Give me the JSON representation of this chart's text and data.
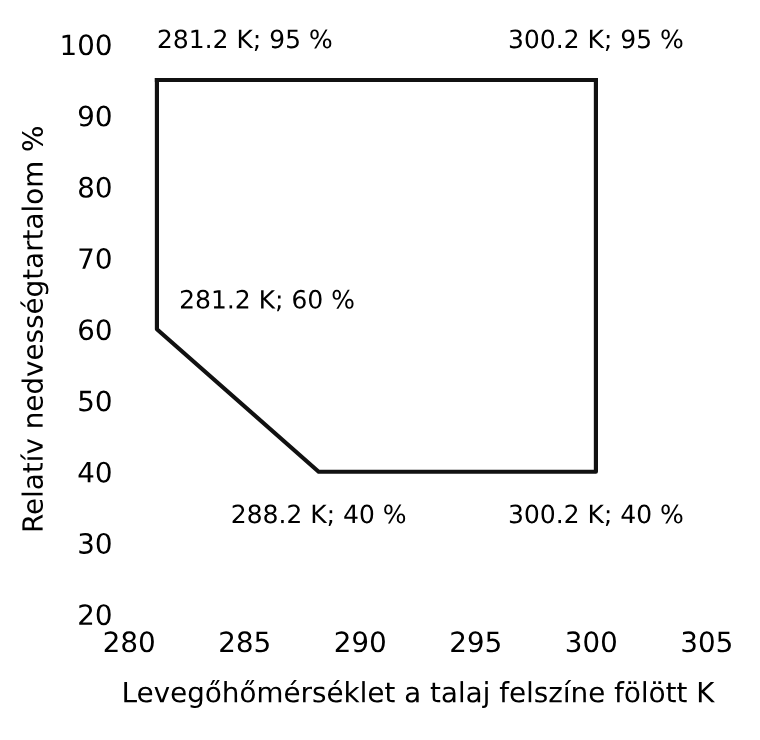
{
  "chart_data": {
    "type": "line",
    "xlabel": "Levegőhőmérséklet a talaj felszíne fölött K",
    "ylabel": "Relatív nedvességtartalom %",
    "series": [
      {
        "color": "#111111",
        "x": [
          281.2,
          281.2,
          288.2,
          300.2,
          300.2
        ],
        "values": [
          95,
          60,
          40,
          40,
          95
        ]
      },
      {
        "color": "#111111",
        "x": [
          281.2,
          300.2
        ],
        "values": [
          95,
          95
        ]
      }
    ],
    "xlim": [
      280,
      305
    ],
    "xticks": [
      280,
      285,
      290,
      295,
      300,
      305
    ],
    "ylim": [
      20,
      100
    ],
    "yticks": [
      20,
      30,
      40,
      50,
      60,
      70,
      80,
      90,
      100
    ],
    "annotations": [
      {
        "text": "281.2 K; 95 %",
        "x": 281.2,
        "y": 95
      },
      {
        "text": "300.2 K; 95 %",
        "x": 300.2,
        "y": 95
      },
      {
        "text": "281.2 K; 60 %",
        "x": 281.2,
        "y": 60
      },
      {
        "text": "288.2 K; 40 %",
        "x": 288.2,
        "y": 40
      },
      {
        "text": "300.2 K; 40 %",
        "x": 300.2,
        "y": 40
      }
    ],
    "grid": false,
    "marker": "none",
    "line_style": "solid"
  }
}
